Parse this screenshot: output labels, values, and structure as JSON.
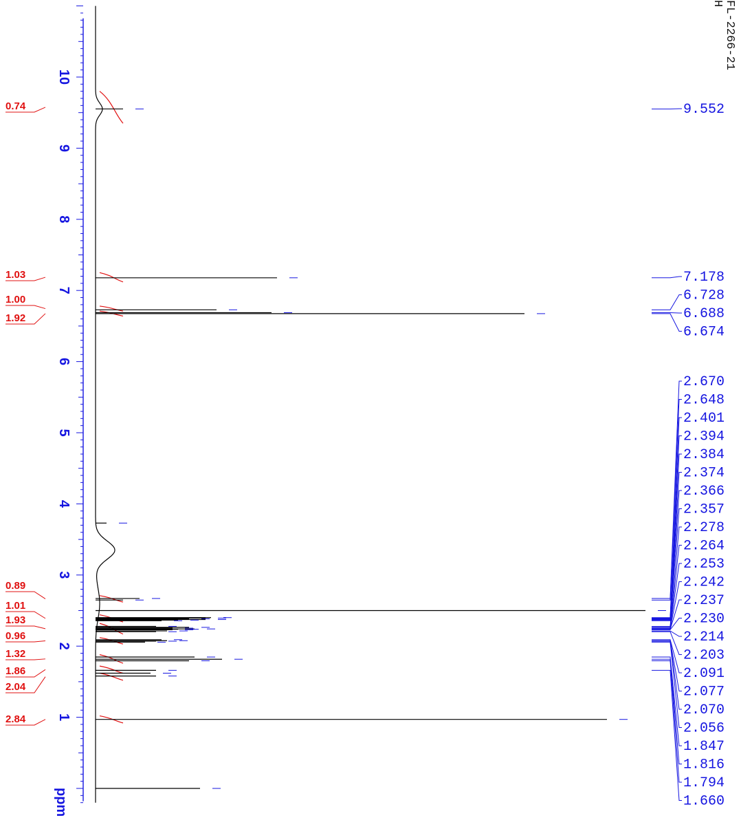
{
  "sample": {
    "code": "FL-2266-21",
    "nucleus": "H"
  },
  "chart_data": {
    "type": "line",
    "title": "",
    "xlabel": "ppm",
    "x_range": [
      -0.2,
      11.0
    ],
    "ticks": [
      1,
      2,
      3,
      4,
      5,
      6,
      7,
      8,
      9,
      10
    ],
    "peaks": [
      {
        "ppm": 9.552,
        "height": 0.05
      },
      {
        "ppm": 7.178,
        "height": 0.33
      },
      {
        "ppm": 6.728,
        "height": 0.22
      },
      {
        "ppm": 6.688,
        "height": 0.32
      },
      {
        "ppm": 6.674,
        "height": 0.78
      },
      {
        "ppm": 3.73,
        "height": 0.02
      },
      {
        "ppm": 2.67,
        "height": 0.08
      },
      {
        "ppm": 2.648,
        "height": 0.05
      },
      {
        "ppm": 2.5,
        "height": 1.0
      },
      {
        "ppm": 2.401,
        "height": 0.21
      },
      {
        "ppm": 2.394,
        "height": 0.2
      },
      {
        "ppm": 2.384,
        "height": 0.17
      },
      {
        "ppm": 2.374,
        "height": 0.2
      },
      {
        "ppm": 2.366,
        "height": 0.15
      },
      {
        "ppm": 2.357,
        "height": 0.12
      },
      {
        "ppm": 2.278,
        "height": 0.11
      },
      {
        "ppm": 2.264,
        "height": 0.17
      },
      {
        "ppm": 2.253,
        "height": 0.14
      },
      {
        "ppm": 2.242,
        "height": 0.18
      },
      {
        "ppm": 2.237,
        "height": 0.15
      },
      {
        "ppm": 2.23,
        "height": 0.14
      },
      {
        "ppm": 2.214,
        "height": 0.13
      },
      {
        "ppm": 2.203,
        "height": 0.11
      },
      {
        "ppm": 2.091,
        "height": 0.12
      },
      {
        "ppm": 2.077,
        "height": 0.13
      },
      {
        "ppm": 2.07,
        "height": 0.11
      },
      {
        "ppm": 2.056,
        "height": 0.09
      },
      {
        "ppm": 1.847,
        "height": 0.18
      },
      {
        "ppm": 1.816,
        "height": 0.23
      },
      {
        "ppm": 1.794,
        "height": 0.17
      },
      {
        "ppm": 1.66,
        "height": 0.11
      },
      {
        "ppm": 1.62,
        "height": 0.1
      },
      {
        "ppm": 1.58,
        "height": 0.11
      },
      {
        "ppm": 0.97,
        "height": 0.93
      },
      {
        "ppm": 0.0,
        "height": 0.19
      }
    ],
    "integrals": [
      {
        "value": "0.74",
        "from": 9.8,
        "to": 9.35
      },
      {
        "value": "1.03",
        "from": 7.25,
        "to": 7.12
      },
      {
        "value": "1.00",
        "from": 6.78,
        "to": 6.71
      },
      {
        "value": "1.92",
        "from": 6.71,
        "to": 6.64
      },
      {
        "value": "0.89",
        "from": 2.71,
        "to": 2.62
      },
      {
        "value": "1.01",
        "from": 2.44,
        "to": 2.34
      },
      {
        "value": "1.93",
        "from": 2.32,
        "to": 2.17
      },
      {
        "value": "0.96",
        "from": 2.12,
        "to": 2.03
      },
      {
        "value": "1.32",
        "from": 1.88,
        "to": 1.76
      },
      {
        "value": "1.86",
        "from": 1.72,
        "to": 1.62
      },
      {
        "value": "2.04",
        "from": 1.62,
        "to": 1.52
      },
      {
        "value": "2.84",
        "from": 1.02,
        "to": 0.92
      }
    ],
    "peak_labels_top": [
      "9.552"
    ],
    "peak_labels_mid": [
      "7.178",
      "6.728",
      "6.688",
      "6.674"
    ],
    "peak_labels_bottom": [
      "2.670",
      "2.648",
      "2.401",
      "2.394",
      "2.384",
      "2.374",
      "2.366",
      "2.357",
      "2.278",
      "2.264",
      "2.253",
      "2.242",
      "2.237",
      "2.230",
      "2.214",
      "2.203",
      "2.091",
      "2.077",
      "2.070",
      "2.056",
      "1.847",
      "1.816",
      "1.794",
      "1.660"
    ]
  },
  "colors": {
    "axis": "#1515e0",
    "spectrum": "#000000",
    "integral": "#e01010",
    "peak_label": "#1515e0"
  }
}
